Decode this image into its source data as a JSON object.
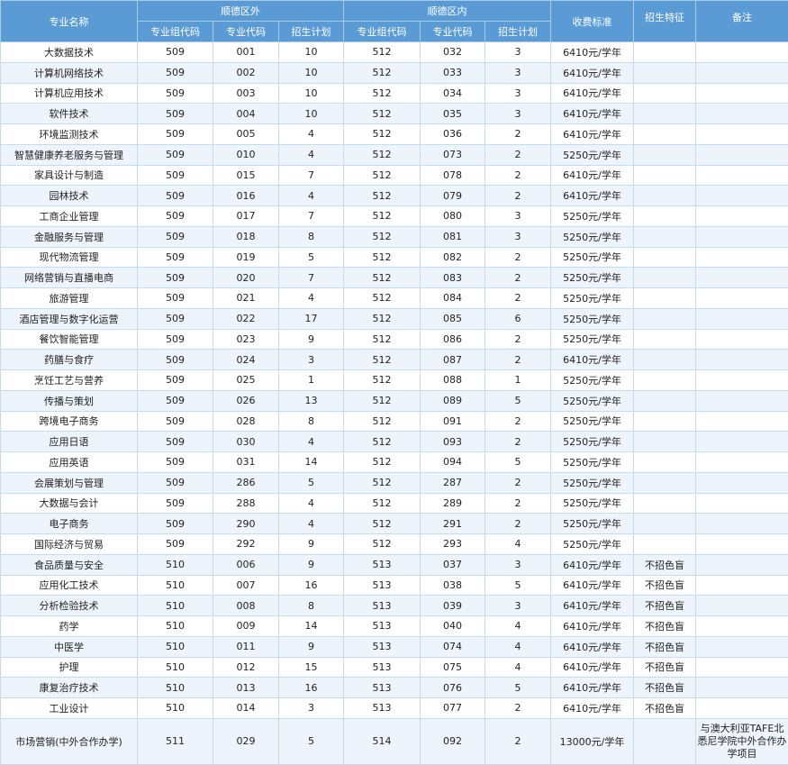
{
  "header": {
    "name": "专业名称",
    "outside": "顺德区外",
    "inside": "顺德区内",
    "group_code": "专业组代码",
    "major_code": "专业代码",
    "plan": "招生计划",
    "fee": "收费标准",
    "feature": "招生特征",
    "remark": "备注"
  },
  "rows": [
    [
      "大数据技术",
      "509",
      "001",
      "10",
      "512",
      "032",
      "3",
      "6410元/学年",
      "",
      ""
    ],
    [
      "计算机网络技术",
      "509",
      "002",
      "10",
      "512",
      "033",
      "3",
      "6410元/学年",
      "",
      ""
    ],
    [
      "计算机应用技术",
      "509",
      "003",
      "10",
      "512",
      "034",
      "3",
      "6410元/学年",
      "",
      ""
    ],
    [
      "软件技术",
      "509",
      "004",
      "10",
      "512",
      "035",
      "3",
      "6410元/学年",
      "",
      ""
    ],
    [
      "环境监测技术",
      "509",
      "005",
      "4",
      "512",
      "036",
      "2",
      "6410元/学年",
      "",
      ""
    ],
    [
      "智慧健康养老服务与管理",
      "509",
      "010",
      "4",
      "512",
      "073",
      "2",
      "5250元/学年",
      "",
      ""
    ],
    [
      "家具设计与制造",
      "509",
      "015",
      "7",
      "512",
      "078",
      "2",
      "6410元/学年",
      "",
      ""
    ],
    [
      "园林技术",
      "509",
      "016",
      "4",
      "512",
      "079",
      "2",
      "6410元/学年",
      "",
      ""
    ],
    [
      "工商企业管理",
      "509",
      "017",
      "7",
      "512",
      "080",
      "3",
      "5250元/学年",
      "",
      ""
    ],
    [
      "金融服务与管理",
      "509",
      "018",
      "8",
      "512",
      "081",
      "3",
      "5250元/学年",
      "",
      ""
    ],
    [
      "现代物流管理",
      "509",
      "019",
      "5",
      "512",
      "082",
      "2",
      "5250元/学年",
      "",
      ""
    ],
    [
      "网络营销与直播电商",
      "509",
      "020",
      "7",
      "512",
      "083",
      "2",
      "5250元/学年",
      "",
      ""
    ],
    [
      "旅游管理",
      "509",
      "021",
      "4",
      "512",
      "084",
      "2",
      "5250元/学年",
      "",
      ""
    ],
    [
      "酒店管理与数字化运营",
      "509",
      "022",
      "17",
      "512",
      "085",
      "6",
      "5250元/学年",
      "",
      ""
    ],
    [
      "餐饮智能管理",
      "509",
      "023",
      "9",
      "512",
      "086",
      "2",
      "5250元/学年",
      "",
      ""
    ],
    [
      "药膳与食疗",
      "509",
      "024",
      "3",
      "512",
      "087",
      "2",
      "6410元/学年",
      "",
      ""
    ],
    [
      "烹饪工艺与营养",
      "509",
      "025",
      "1",
      "512",
      "088",
      "1",
      "5250元/学年",
      "",
      ""
    ],
    [
      "传播与策划",
      "509",
      "026",
      "13",
      "512",
      "089",
      "5",
      "5250元/学年",
      "",
      ""
    ],
    [
      "跨境电子商务",
      "509",
      "028",
      "8",
      "512",
      "091",
      "2",
      "5250元/学年",
      "",
      ""
    ],
    [
      "应用日语",
      "509",
      "030",
      "4",
      "512",
      "093",
      "2",
      "5250元/学年",
      "",
      ""
    ],
    [
      "应用英语",
      "509",
      "031",
      "14",
      "512",
      "094",
      "5",
      "5250元/学年",
      "",
      ""
    ],
    [
      "会展策划与管理",
      "509",
      "286",
      "5",
      "512",
      "287",
      "2",
      "5250元/学年",
      "",
      ""
    ],
    [
      "大数据与会计",
      "509",
      "288",
      "4",
      "512",
      "289",
      "2",
      "5250元/学年",
      "",
      ""
    ],
    [
      "电子商务",
      "509",
      "290",
      "4",
      "512",
      "291",
      "2",
      "5250元/学年",
      "",
      ""
    ],
    [
      "国际经济与贸易",
      "509",
      "292",
      "9",
      "512",
      "293",
      "4",
      "5250元/学年",
      "",
      ""
    ],
    [
      "食品质量与安全",
      "510",
      "006",
      "9",
      "513",
      "037",
      "3",
      "6410元/学年",
      "不招色盲",
      ""
    ],
    [
      "应用化工技术",
      "510",
      "007",
      "16",
      "513",
      "038",
      "5",
      "6410元/学年",
      "不招色盲",
      ""
    ],
    [
      "分析检验技术",
      "510",
      "008",
      "8",
      "513",
      "039",
      "3",
      "6410元/学年",
      "不招色盲",
      ""
    ],
    [
      "药学",
      "510",
      "009",
      "14",
      "513",
      "040",
      "4",
      "6410元/学年",
      "不招色盲",
      ""
    ],
    [
      "中医学",
      "510",
      "011",
      "9",
      "513",
      "074",
      "4",
      "6410元/学年",
      "不招色盲",
      ""
    ],
    [
      "护理",
      "510",
      "012",
      "15",
      "513",
      "075",
      "4",
      "6410元/学年",
      "不招色盲",
      ""
    ],
    [
      "康复治疗技术",
      "510",
      "013",
      "16",
      "513",
      "076",
      "5",
      "6410元/学年",
      "不招色盲",
      ""
    ],
    [
      "工业设计",
      "510",
      "014",
      "3",
      "513",
      "077",
      "2",
      "6410元/学年",
      "不招色盲",
      ""
    ],
    [
      "市场营销(中外合作办学)",
      "511",
      "029",
      "5",
      "514",
      "092",
      "2",
      "13000元/学年",
      "",
      "与澳大利亚TAFE北悉尼学院中外合作办学项目"
    ]
  ]
}
